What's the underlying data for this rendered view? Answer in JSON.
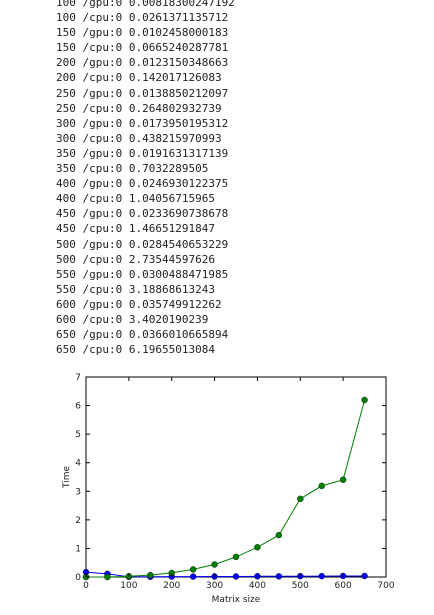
{
  "log_lines": [
    "100 /gpu:0 0.00818300247192",
    "100 /cpu:0 0.0261371135712",
    "150 /gpu:0 0.0102458000183",
    "150 /cpu:0 0.0665240287781",
    "200 /gpu:0 0.0123150348663",
    "200 /cpu:0 0.142017126083",
    "250 /gpu:0 0.0138850212097",
    "250 /cpu:0 0.264802932739",
    "300 /gpu:0 0.0173950195312",
    "300 /cpu:0 0.438215970993",
    "350 /gpu:0 0.0191631317139",
    "350 /cpu:0 0.7032289505",
    "400 /gpu:0 0.0246930122375",
    "400 /cpu:0 1.04056715965",
    "450 /gpu:0 0.0233690738678",
    "450 /cpu:0 1.46651291847",
    "500 /gpu:0 0.0284540653229",
    "500 /cpu:0 2.73544597626",
    "550 /gpu:0 0.0300488471985",
    "550 /cpu:0 3.18868613243",
    "600 /gpu:0 0.035749912262",
    "600 /cpu:0 3.4020190239",
    "650 /gpu:0 0.0366010665894",
    "650 /cpu:0 6.19655013084"
  ],
  "chart_data": {
    "type": "line",
    "title": "",
    "xlabel": "Matrix size",
    "ylabel": "Time",
    "xlim": [
      0,
      700
    ],
    "ylim": [
      0,
      7
    ],
    "xticks": [
      0,
      100,
      200,
      300,
      400,
      500,
      600,
      700
    ],
    "yticks": [
      0,
      1,
      2,
      3,
      4,
      5,
      6,
      7
    ],
    "grid": false,
    "x": [
      0,
      50,
      100,
      150,
      200,
      250,
      300,
      350,
      400,
      450,
      500,
      550,
      600,
      650
    ],
    "series": [
      {
        "color": "#0000ff",
        "values": [
          0.17,
          0.11,
          0.0082,
          0.0102,
          0.0123,
          0.0139,
          0.0174,
          0.0192,
          0.0247,
          0.0234,
          0.0285,
          0.03,
          0.0357,
          0.0366
        ]
      },
      {
        "color": "#007f00",
        "values": [
          0.0,
          0.0,
          0.0261,
          0.0665,
          0.142,
          0.2648,
          0.4382,
          0.7032,
          1.0406,
          1.4665,
          2.7354,
          3.1887,
          3.402,
          6.1966
        ]
      }
    ]
  }
}
